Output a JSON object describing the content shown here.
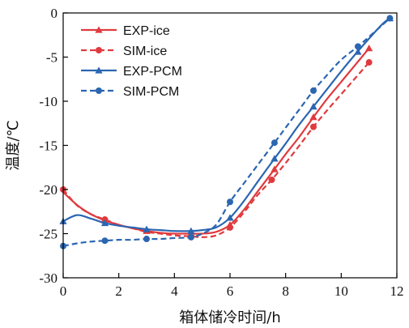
{
  "chart_data": {
    "type": "line",
    "xlabel": "箱体储冷时间/h",
    "ylabel": "温度/℃",
    "xlim": [
      0,
      12
    ],
    "ylim": [
      -30,
      0
    ],
    "xticks": [
      0,
      2,
      4,
      6,
      8,
      10,
      12
    ],
    "yticks": [
      0,
      -5,
      -10,
      -15,
      -20,
      -25,
      -30
    ],
    "grid": false,
    "legend_position": "top-left",
    "colors": {
      "red": "#e03a3e",
      "blue": "#2b66b1"
    },
    "series": [
      {
        "name": "EXP-ice",
        "color": "#e03a3e",
        "style": "solid",
        "marker": "triangle",
        "x": [
          0,
          0.3,
          0.6,
          1.0,
          1.5,
          2.0,
          2.5,
          3.0,
          3.5,
          4.0,
          4.6,
          5.0,
          5.5,
          6.0,
          6.5,
          7.0,
          7.6,
          8.0,
          8.5,
          9.0,
          9.5,
          10.0,
          10.5,
          11.0
        ],
        "y": [
          -20.3,
          -21.2,
          -22.0,
          -22.8,
          -23.5,
          -24.0,
          -24.4,
          -24.7,
          -24.9,
          -25.0,
          -25.0,
          -25.0,
          -24.8,
          -24.0,
          -22.3,
          -20.2,
          -17.7,
          -16.0,
          -14.0,
          -11.8,
          -9.7,
          -7.8,
          -5.9,
          -4.0
        ],
        "marker_x": [
          1.5,
          3.0,
          4.6,
          6.0,
          7.6,
          9.0,
          11.0
        ],
        "marker_y": [
          -23.5,
          -24.7,
          -25.0,
          -24.0,
          -17.7,
          -11.8,
          -4.0
        ]
      },
      {
        "name": "SIM-ice",
        "color": "#e03a3e",
        "style": "dashed",
        "marker": "circle",
        "x": [
          0,
          0.5,
          1.0,
          1.5,
          2.0,
          2.5,
          3.0,
          3.5,
          4.0,
          4.6,
          5.0,
          5.5,
          6.0,
          6.5,
          7.0,
          7.5,
          8.0,
          8.5,
          9.0,
          9.5,
          10.0,
          10.5,
          11.0
        ],
        "y": [
          -20.0,
          -21.8,
          -22.8,
          -23.4,
          -24.0,
          -24.4,
          -24.8,
          -25.0,
          -25.2,
          -25.3,
          -25.4,
          -25.2,
          -24.3,
          -22.6,
          -20.6,
          -18.9,
          -17.0,
          -15.0,
          -12.9,
          -11.0,
          -9.2,
          -7.4,
          -5.6
        ],
        "marker_x": [
          0,
          1.5,
          4.6,
          6.0,
          7.5,
          9.0,
          11.0
        ],
        "marker_y": [
          -20.0,
          -23.4,
          -25.3,
          -24.3,
          -18.9,
          -12.9,
          -5.6
        ]
      },
      {
        "name": "EXP-PCM",
        "color": "#2b66b1",
        "style": "solid",
        "marker": "triangle",
        "x": [
          0,
          0.5,
          1.0,
          1.5,
          2.0,
          2.5,
          3.0,
          3.5,
          4.0,
          4.6,
          5.0,
          5.5,
          6.0,
          6.5,
          7.0,
          7.6,
          8.0,
          8.5,
          9.0,
          9.5,
          10.0,
          10.5,
          11.0,
          11.5,
          11.75
        ],
        "y": [
          -23.6,
          -22.9,
          -23.3,
          -23.8,
          -24.1,
          -24.3,
          -24.5,
          -24.6,
          -24.7,
          -24.7,
          -24.6,
          -24.3,
          -23.2,
          -21.3,
          -19.1,
          -16.5,
          -14.8,
          -12.6,
          -10.6,
          -8.6,
          -6.6,
          -4.7,
          -2.9,
          -1.2,
          -0.6
        ],
        "marker_x": [
          0,
          1.5,
          3.0,
          4.6,
          6.0,
          7.6,
          9.0,
          10.6,
          11.75
        ],
        "marker_y": [
          -23.6,
          -23.8,
          -24.5,
          -24.7,
          -23.2,
          -16.5,
          -10.6,
          -4.4,
          -0.6
        ]
      },
      {
        "name": "SIM-PCM",
        "color": "#2b66b1",
        "style": "dashed",
        "marker": "circle",
        "x": [
          0,
          0.5,
          1.0,
          1.5,
          2.0,
          2.5,
          3.0,
          3.5,
          4.0,
          4.6,
          5.0,
          5.5,
          6.0,
          6.5,
          7.0,
          7.6,
          8.0,
          8.5,
          9.0,
          9.5,
          10.0,
          10.6,
          11.0,
          11.5,
          11.75
        ],
        "y": [
          -26.4,
          -26.1,
          -25.9,
          -25.8,
          -25.7,
          -25.7,
          -25.6,
          -25.6,
          -25.5,
          -25.4,
          -25.0,
          -24.0,
          -21.4,
          -19.3,
          -17.2,
          -14.7,
          -13.0,
          -10.9,
          -8.8,
          -7.0,
          -5.3,
          -3.8,
          -2.7,
          -1.3,
          -0.6
        ],
        "marker_x": [
          0,
          1.5,
          3.0,
          4.6,
          6.0,
          7.6,
          9.0,
          10.6,
          11.75
        ],
        "marker_y": [
          -26.4,
          -25.8,
          -25.6,
          -25.4,
          -21.4,
          -14.7,
          -8.8,
          -3.8,
          -0.6
        ]
      }
    ]
  }
}
